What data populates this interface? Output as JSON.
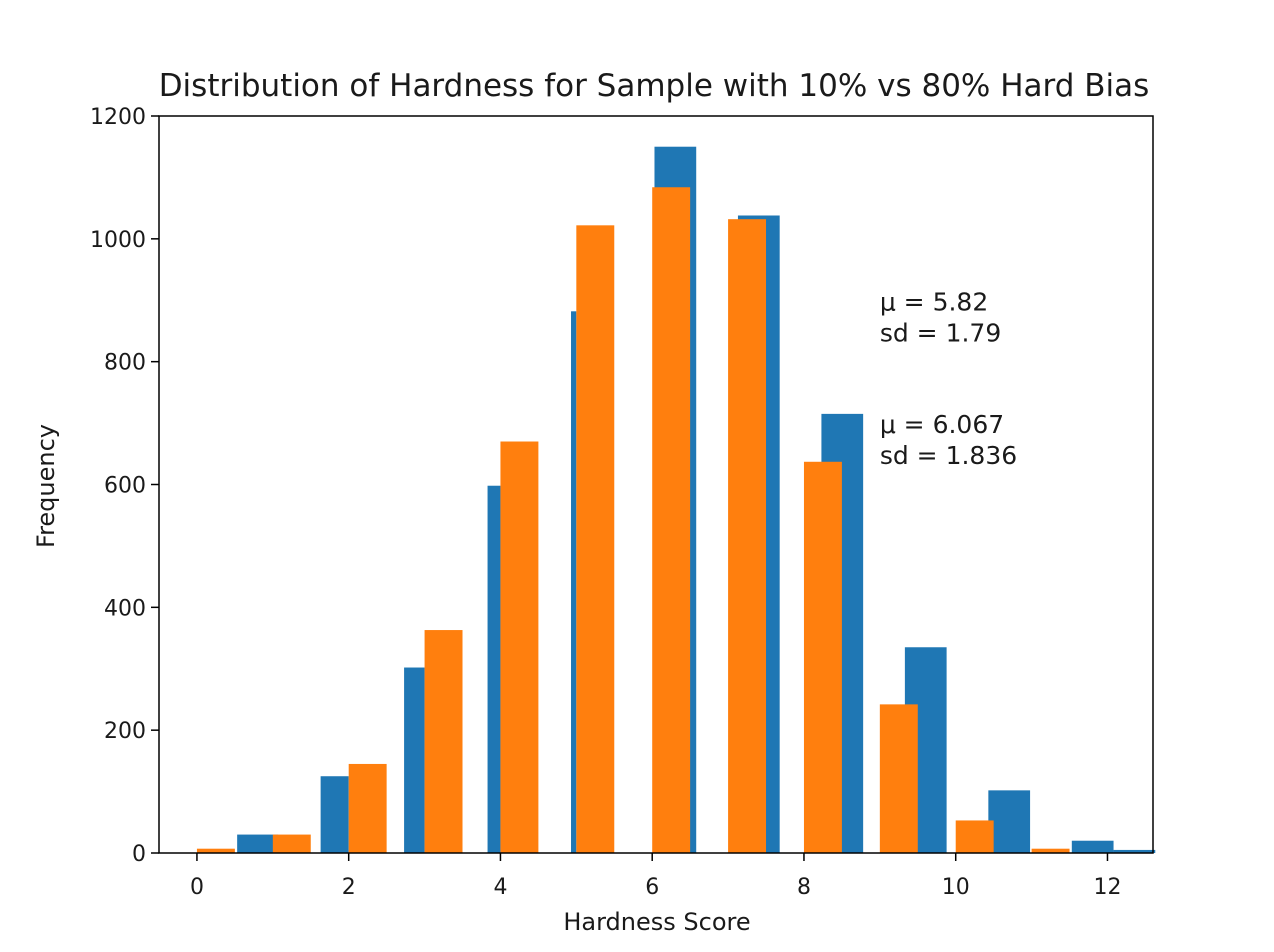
{
  "chart_data": {
    "type": "bar",
    "title": "Distribution of Hardness for Sample with 10% vs 80% Hard Bias",
    "xlabel": "Hardness Score",
    "ylabel": "Frequency",
    "xlim": [
      -0.5,
      12.6
    ],
    "ylim": [
      0,
      1200
    ],
    "x_ticks": [
      0,
      2,
      4,
      6,
      8,
      10,
      12
    ],
    "y_ticks": [
      0,
      200,
      400,
      600,
      800,
      1000,
      1200
    ],
    "grid": false,
    "legend": null,
    "series": [
      {
        "color": "#1f77b4",
        "bars": [
          {
            "x0": 0.53,
            "x1": 1.07,
            "value": 30
          },
          {
            "x0": 1.63,
            "x1": 2.0,
            "value": 125
          },
          {
            "x0": 2.73,
            "x1": 3.0,
            "value": 302
          },
          {
            "x0": 3.83,
            "x1": 4.0,
            "value": 598
          },
          {
            "x0": 4.93,
            "x1": 5.0,
            "value": 882
          },
          {
            "x0": 6.03,
            "x1": 6.58,
            "value": 1150
          },
          {
            "x0": 7.13,
            "x1": 7.68,
            "value": 1038
          },
          {
            "x0": 8.23,
            "x1": 8.78,
            "value": 715
          },
          {
            "x0": 9.33,
            "x1": 9.88,
            "value": 335
          },
          {
            "x0": 10.43,
            "x1": 10.98,
            "value": 102
          },
          {
            "x0": 11.53,
            "x1": 12.08,
            "value": 20
          },
          {
            "x0": 12.08,
            "x1": 12.63,
            "value": 5
          }
        ]
      },
      {
        "color": "#ff7f0e",
        "bars": [
          {
            "x0": 0.0,
            "x1": 0.5,
            "value": 7
          },
          {
            "x0": 1.0,
            "x1": 1.5,
            "value": 30
          },
          {
            "x0": 2.0,
            "x1": 2.5,
            "value": 145
          },
          {
            "x0": 3.0,
            "x1": 3.5,
            "value": 363
          },
          {
            "x0": 4.0,
            "x1": 4.5,
            "value": 670
          },
          {
            "x0": 5.0,
            "x1": 5.5,
            "value": 1022
          },
          {
            "x0": 6.0,
            "x1": 6.5,
            "value": 1084
          },
          {
            "x0": 7.0,
            "x1": 7.5,
            "value": 1032
          },
          {
            "x0": 8.0,
            "x1": 8.5,
            "value": 637
          },
          {
            "x0": 9.0,
            "x1": 9.5,
            "value": 242
          },
          {
            "x0": 10.0,
            "x1": 10.5,
            "value": 53
          },
          {
            "x0": 11.0,
            "x1": 11.5,
            "value": 7
          }
        ]
      }
    ],
    "annotations": [
      {
        "x": 9.0,
        "y": 900,
        "line1": "μ =   5.82",
        "line2": "sd =  1.79"
      },
      {
        "x": 9.0,
        "y": 700,
        "line1": "μ =   6.067",
        "line2": "sd =  1.836"
      }
    ]
  }
}
